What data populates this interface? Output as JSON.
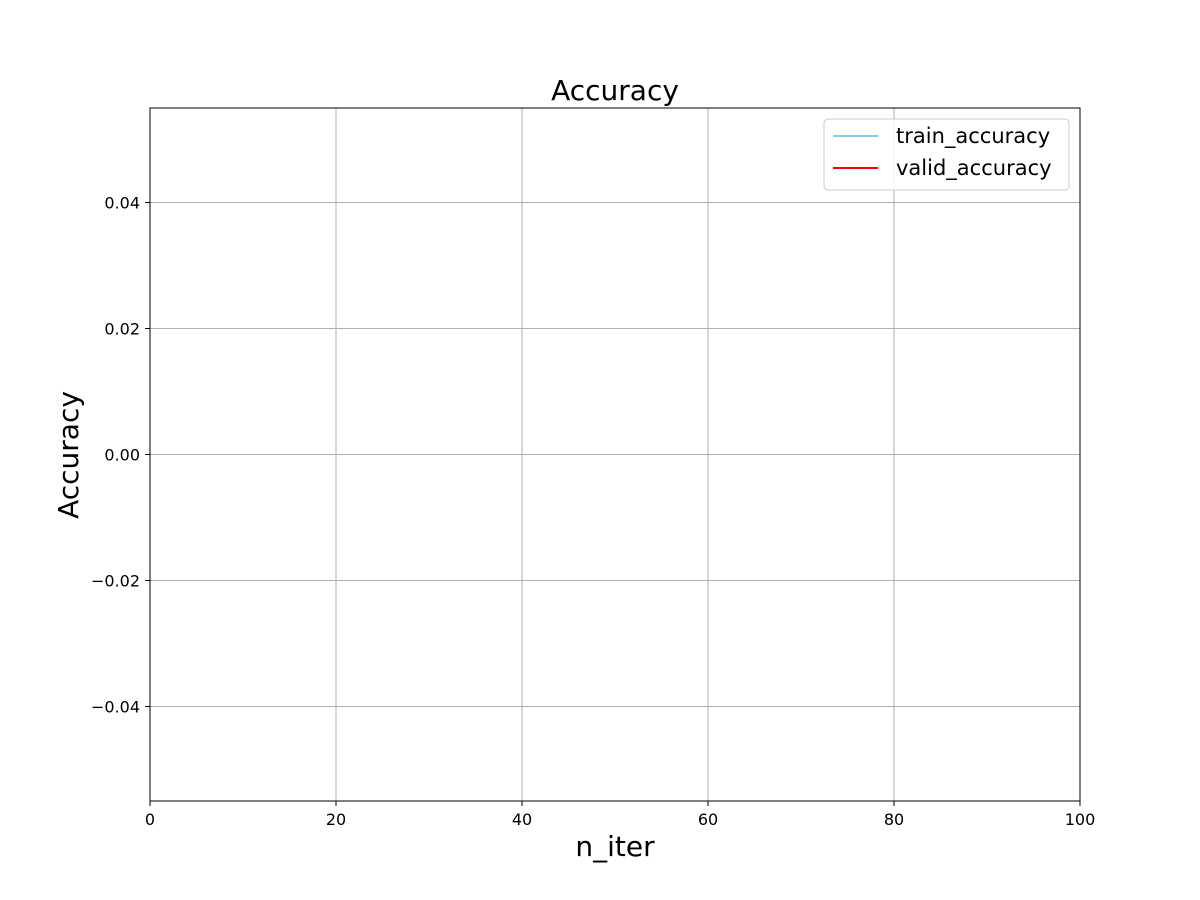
{
  "chart_data": {
    "type": "line",
    "title": "Accuracy",
    "xlabel": "n_iter",
    "ylabel": "Accuracy",
    "xlim": [
      0,
      100
    ],
    "ylim": [
      -0.055,
      0.055
    ],
    "xticks": [
      0,
      20,
      40,
      60,
      80,
      100
    ],
    "xtick_labels": [
      "0",
      "20",
      "40",
      "60",
      "80",
      "100"
    ],
    "yticks": [
      -0.04,
      -0.02,
      0.0,
      0.02,
      0.04
    ],
    "ytick_labels": [
      "−0.04",
      "−0.02",
      "0.00",
      "0.02",
      "0.04"
    ],
    "grid": true,
    "legend_position": "top-right",
    "series": [
      {
        "name": "train_accuracy",
        "color": "#87ceeb",
        "x": [],
        "y": []
      },
      {
        "name": "valid_accuracy",
        "color": "#ff0000",
        "x": [],
        "y": []
      }
    ]
  }
}
